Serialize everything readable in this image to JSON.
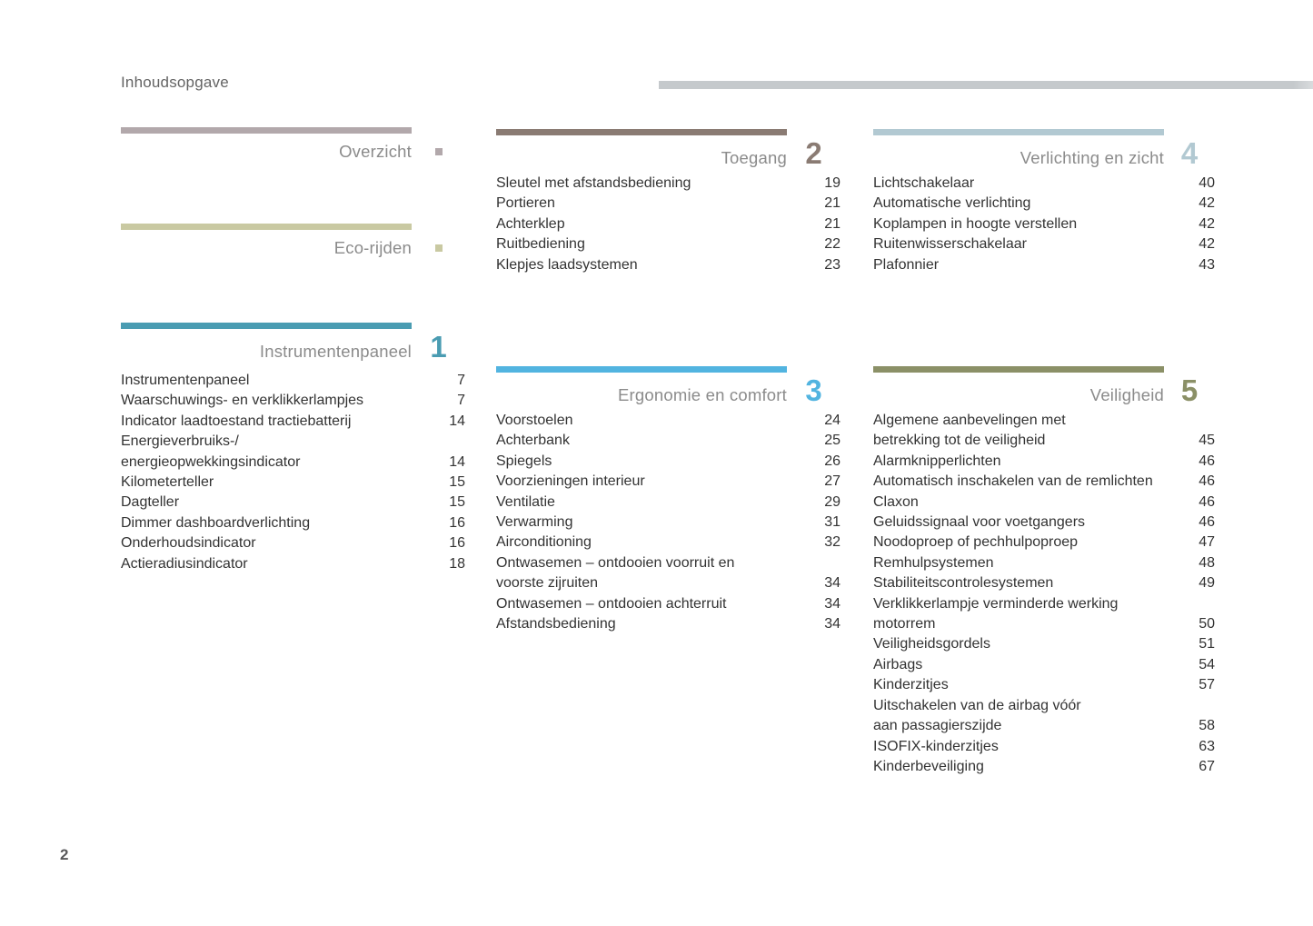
{
  "page": {
    "title": "Inhoudsopgave",
    "page_number": "2"
  },
  "colors": {
    "top_rule": "#c5c9cc",
    "body_text": "#333333",
    "section_title": "#8b8b8b"
  },
  "sections": {
    "overzicht": {
      "title": "Overzicht",
      "marker": "square-bullet",
      "accent": "#b2a8ab",
      "items": []
    },
    "eco_rijden": {
      "title": "Eco-rijden",
      "marker": "square-bullet",
      "accent": "#c9c9a2",
      "items": []
    },
    "instrumentenpaneel": {
      "title": "Instrumentenpaneel",
      "number": "1",
      "accent": "#4a9cb2",
      "items": [
        {
          "label": "Instrumentenpaneel",
          "page": "7"
        },
        {
          "label": "Waarschuwings- en verklikkerlampjes",
          "page": "7"
        },
        {
          "label": "Indicator laadtoestand tractiebatterij",
          "page": "14"
        },
        {
          "label": "Energieverbruiks-/\nenergieopwekkingsindicator",
          "page": "14"
        },
        {
          "label": "Kilometerteller",
          "page": "15"
        },
        {
          "label": "Dagteller",
          "page": "15"
        },
        {
          "label": "Dimmer dashboardverlichting",
          "page": "16"
        },
        {
          "label": "Onderhoudsindicator",
          "page": "16"
        },
        {
          "label": "Actieradiusindicator",
          "page": "18"
        }
      ]
    },
    "toegang": {
      "title": "Toegang",
      "number": "2",
      "accent": "#8a7b73",
      "items": [
        {
          "label": "Sleutel met afstandsbediening",
          "page": "19"
        },
        {
          "label": "Portieren",
          "page": "21"
        },
        {
          "label": "Achterklep",
          "page": "21"
        },
        {
          "label": "Ruitbediening",
          "page": "22"
        },
        {
          "label": "Klepjes laadsystemen",
          "page": "23"
        }
      ]
    },
    "ergonomie_en_comfort": {
      "title": "Ergonomie en comfort",
      "number": "3",
      "accent": "#52b4e0",
      "items": [
        {
          "label": "Voorstoelen",
          "page": "24"
        },
        {
          "label": "Achterbank",
          "page": "25"
        },
        {
          "label": "Spiegels",
          "page": "26"
        },
        {
          "label": "Voorzieningen interieur",
          "page": "27"
        },
        {
          "label": "Ventilatie",
          "page": "29"
        },
        {
          "label": "Verwarming",
          "page": "31"
        },
        {
          "label": "Airconditioning",
          "page": "32"
        },
        {
          "label": "Ontwasemen – ontdooien voorruit en\nvoorste zijruiten",
          "page": "34"
        },
        {
          "label": "Ontwasemen – ontdooien achterruit",
          "page": "34"
        },
        {
          "label": "Afstandsbediening",
          "page": "34"
        }
      ]
    },
    "verlichting_en_zicht": {
      "title": "Verlichting en zicht",
      "number": "4",
      "accent": "#b2c9d2",
      "items": [
        {
          "label": "Lichtschakelaar",
          "page": "40"
        },
        {
          "label": "Automatische verlichting",
          "page": "42"
        },
        {
          "label": "Koplampen in hoogte verstellen",
          "page": "42"
        },
        {
          "label": "Ruitenwisserschakelaar",
          "page": "42"
        },
        {
          "label": "Plafonnier",
          "page": "43"
        }
      ]
    },
    "veiligheid": {
      "title": "Veiligheid",
      "number": "5",
      "accent": "#8b9067",
      "items": [
        {
          "label": "Algemene aanbevelingen met\nbetrekking tot de veiligheid",
          "page": "45"
        },
        {
          "label": "Alarmknipperlichten",
          "page": "46"
        },
        {
          "label": "Automatisch inschakelen van de remlichten",
          "page": "46"
        },
        {
          "label": "Claxon",
          "page": "46"
        },
        {
          "label": "Geluidssignaal voor voetgangers",
          "page": "46"
        },
        {
          "label": "Noodoproep of pechhulpoproep",
          "page": "47"
        },
        {
          "label": "Remhulpsystemen",
          "page": "48"
        },
        {
          "label": "Stabiliteitscontrolesystemen",
          "page": "49"
        },
        {
          "label": "Verklikkerlampje verminderde werking\nmotorrem",
          "page": "50"
        },
        {
          "label": "Veiligheidsgordels",
          "page": "51"
        },
        {
          "label": "Airbags",
          "page": "54"
        },
        {
          "label": "Kinderzitjes",
          "page": "57"
        },
        {
          "label": "Uitschakelen van de airbag vóór\naan passagierszijde",
          "page": "58"
        },
        {
          "label": "ISOFIX-kinderzitjes",
          "page": "63"
        },
        {
          "label": "Kinderbeveiliging",
          "page": "67"
        }
      ]
    }
  }
}
